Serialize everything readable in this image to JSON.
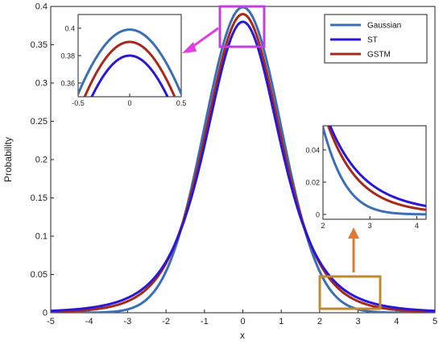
{
  "chart_data": [
    {
      "type": "line",
      "xlabel": "x",
      "ylabel": "Probability",
      "xlim": [
        -5,
        5
      ],
      "ylim": [
        0,
        0.4
      ],
      "xticks": [
        "-5",
        "-4",
        "-3",
        "-2",
        "-1",
        "0",
        "1",
        "2",
        "3",
        "4",
        "5"
      ],
      "yticks": [
        "0",
        "0.05",
        "0.1",
        "0.15",
        "0.2",
        "0.25",
        "0.3",
        "0.35",
        "0.4"
      ],
      "grid": false,
      "legend_position": "top-right",
      "series": [
        {
          "name": "Gaussian",
          "color": "#3a6fb8",
          "distribution": "normal",
          "peak": 0.399,
          "x": [
            -5,
            -4,
            -3,
            -2,
            -1,
            0,
            1,
            2,
            3,
            4,
            5
          ],
          "values": [
            0.0,
            0.0001,
            0.0044,
            0.054,
            0.242,
            0.399,
            0.242,
            0.054,
            0.0044,
            0.0001,
            0.0
          ]
        },
        {
          "name": "ST",
          "color": "#2a17d6",
          "distribution": "student-t",
          "peak": 0.38,
          "x": [
            -5,
            -4,
            -3,
            -2,
            -1,
            0,
            1,
            2,
            3,
            4,
            5
          ],
          "values": [
            0.004,
            0.008,
            0.017,
            0.051,
            0.22,
            0.38,
            0.22,
            0.051,
            0.017,
            0.008,
            0.004
          ]
        },
        {
          "name": "GSTM",
          "color": "#a8281a",
          "distribution": "mixture",
          "peak": 0.39,
          "x": [
            -5,
            -4,
            -3,
            -2,
            -1,
            0,
            1,
            2,
            3,
            4,
            5
          ],
          "values": [
            0.002,
            0.004,
            0.011,
            0.052,
            0.23,
            0.39,
            0.23,
            0.052,
            0.011,
            0.004,
            0.002
          ]
        }
      ]
    },
    {
      "type": "line",
      "role": "inset-zoom-peak",
      "xlim": [
        -0.5,
        0.5
      ],
      "ylim": [
        0.35,
        0.41
      ],
      "xticks": [
        "-0.5",
        "0",
        "0.5"
      ],
      "yticks": [
        "0.36",
        "0.38",
        "0.4"
      ]
    },
    {
      "type": "line",
      "role": "inset-zoom-tail",
      "xlim": [
        2,
        4.2
      ],
      "ylim": [
        -0.003,
        0.055
      ],
      "xticks": [
        "2",
        "3",
        "4"
      ],
      "yticks": [
        "0",
        "0.02",
        "0.04"
      ]
    }
  ],
  "legend": {
    "items": [
      {
        "label": "Gaussian",
        "color": "#3a6fb8"
      },
      {
        "label": "ST",
        "color": "#2a17d6"
      },
      {
        "label": "GSTM",
        "color": "#a8281a"
      }
    ]
  },
  "annotations": {
    "peak_box_color": "#c040e0",
    "tail_box_color": "#c08a30",
    "peak_arrow_color": "#e040e0",
    "tail_arrow_color": "#e07a30"
  }
}
